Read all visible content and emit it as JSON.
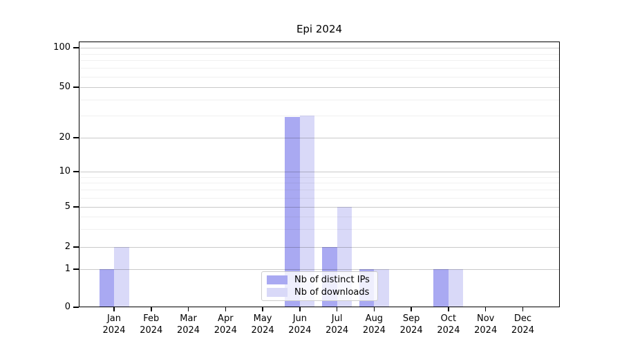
{
  "chart_data": {
    "type": "bar",
    "title": "Epi 2024",
    "categories": [
      "Jan",
      "Feb",
      "Mar",
      "Apr",
      "May",
      "Jun",
      "Jul",
      "Aug",
      "Sep",
      "Oct",
      "Nov",
      "Dec"
    ],
    "x_year": "2024",
    "series": [
      {
        "name": "Nb of distinct IPs",
        "color": "#a9a9f2",
        "values": [
          1,
          0,
          0,
          0,
          0,
          29,
          2,
          1,
          0,
          1,
          0,
          0
        ]
      },
      {
        "name": "Nb of downloads",
        "color": "#d9d9f8",
        "values": [
          2,
          0,
          0,
          0,
          0,
          30,
          5,
          1,
          0,
          1,
          0,
          0
        ]
      }
    ],
    "yticks": [
      0,
      1,
      2,
      5,
      10,
      20,
      50,
      100
    ],
    "y_minor_gridlines": [
      3,
      4,
      6,
      7,
      8,
      9,
      30,
      40,
      60,
      70,
      80,
      90
    ],
    "scale": "log above 1, linear 0-1",
    "ylim": [
      0,
      112
    ],
    "grid": "horizontal major and minor",
    "legend_position": "lower center"
  },
  "colors": {
    "bar_distinct_ips": "#a9a9f2",
    "bar_downloads": "#d9d9f8",
    "grid_major": "#c9c9c9",
    "grid_minor": "#ededed",
    "axis": "#000000",
    "background": "#ffffff"
  }
}
